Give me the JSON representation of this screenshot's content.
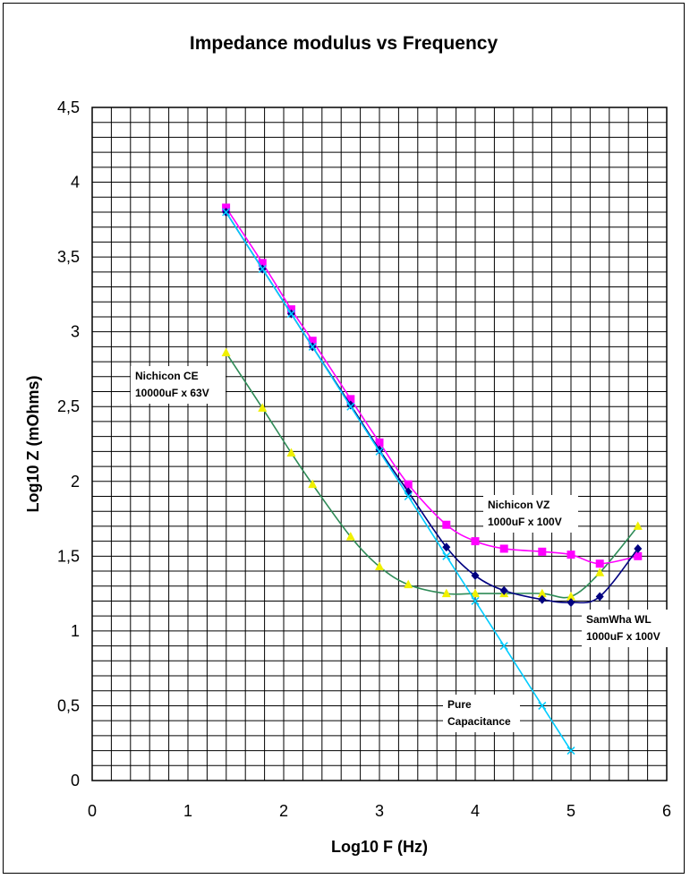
{
  "chart_data": {
    "type": "scatter",
    "title": "Impedance modulus vs Frequency",
    "xlabel": "Log10 F (Hz)",
    "ylabel": "Log10 Z (mOhms)",
    "xlim": [
      0,
      6
    ],
    "ylim": [
      0,
      4.5
    ],
    "x_ticks": [
      "0",
      "1",
      "2",
      "3",
      "4",
      "5",
      "6"
    ],
    "y_ticks": [
      "0",
      "0,5",
      "1",
      "1,5",
      "2",
      "2,5",
      "3",
      "3,5",
      "4",
      "4,5"
    ],
    "grid": true,
    "legend": "none",
    "series": [
      {
        "name": "Nichicon CE 10000uF x 63V",
        "color": "#f0f000",
        "line_color": "#2e8b57",
        "marker": "triangle",
        "x": [
          1.398,
          1.778,
          2.079,
          2.301,
          2.699,
          3.0,
          3.301,
          3.699,
          4.0,
          4.301,
          4.699,
          5.0,
          5.301,
          5.699
        ],
        "y": [
          2.86,
          2.49,
          2.19,
          1.98,
          1.63,
          1.43,
          1.31,
          1.25,
          1.25,
          1.25,
          1.25,
          1.23,
          1.39,
          1.7
        ]
      },
      {
        "name": "Nichicon VZ 1000uF x 100V",
        "color": "#ff00ff",
        "line_color": "#ff00ff",
        "marker": "square",
        "x": [
          1.398,
          1.778,
          2.079,
          2.301,
          2.699,
          3.0,
          3.301,
          3.699,
          4.0,
          4.301,
          4.699,
          5.0,
          5.301,
          5.699
        ],
        "y": [
          3.83,
          3.46,
          3.15,
          2.94,
          2.55,
          2.26,
          1.98,
          1.71,
          1.6,
          1.55,
          1.53,
          1.51,
          1.45,
          1.5
        ]
      },
      {
        "name": "SamWha WL 1000uF x 100V",
        "color": "#000080",
        "line_color": "#000080",
        "marker": "diamond",
        "x": [
          1.398,
          1.778,
          2.079,
          2.301,
          2.699,
          3.0,
          3.301,
          3.699,
          4.0,
          4.301,
          4.699,
          5.0,
          5.301,
          5.699
        ],
        "y": [
          3.8,
          3.42,
          3.12,
          2.9,
          2.51,
          2.21,
          1.93,
          1.56,
          1.37,
          1.27,
          1.21,
          1.19,
          1.23,
          1.55
        ]
      },
      {
        "name": "Pure Capacitance",
        "color": "#00ccff",
        "line_color": "#00ccff",
        "marker": "x",
        "x": [
          1.398,
          1.778,
          2.079,
          2.301,
          2.699,
          3.0,
          3.301,
          3.699,
          4.0,
          4.301,
          4.699,
          5.0
        ],
        "y": [
          3.8,
          3.42,
          3.12,
          2.9,
          2.5,
          2.2,
          1.9,
          1.5,
          1.2,
          0.9,
          0.5,
          0.2
        ]
      }
    ],
    "annotations": [
      {
        "series": 0,
        "lines": [
          "Nichicon CE",
          "10000uF x 63V"
        ]
      },
      {
        "series": 1,
        "lines": [
          "Nichicon VZ",
          "1000uF x 100V"
        ]
      },
      {
        "series": 2,
        "lines": [
          "SamWha WL",
          "1000uF x 100V"
        ]
      },
      {
        "series": 3,
        "lines": [
          "Pure",
          "Capacitance"
        ]
      }
    ]
  }
}
